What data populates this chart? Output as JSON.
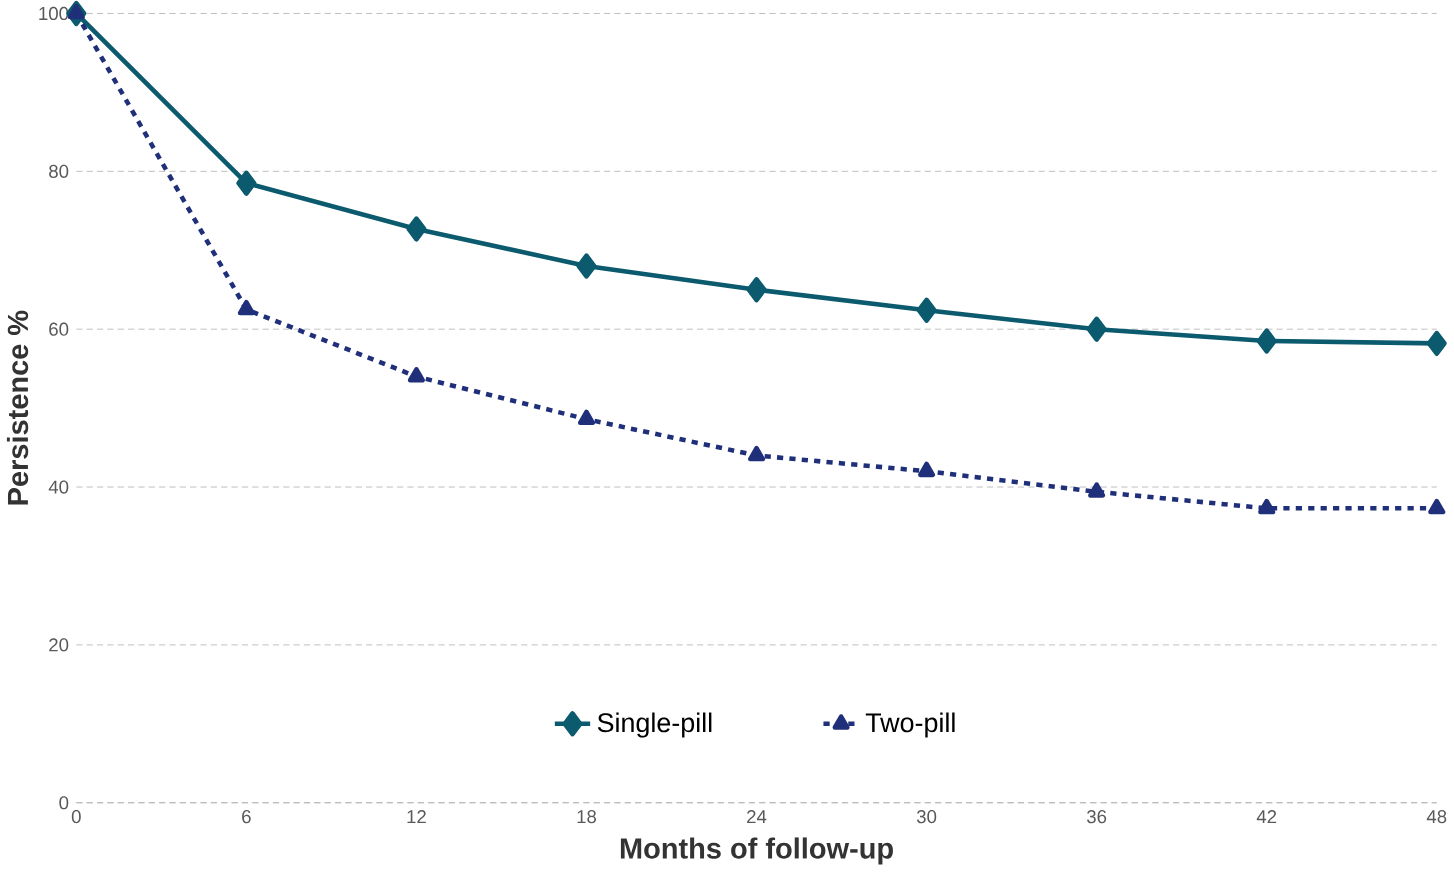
{
  "chart_data": {
    "type": "line",
    "xlabel": "Months of follow-up",
    "ylabel": "Persistence %",
    "x": [
      0,
      6,
      12,
      18,
      24,
      30,
      36,
      42,
      48
    ],
    "series": [
      {
        "name": "Single-pill",
        "color": "#0b5a6e",
        "marker": "diamond",
        "line_style": "solid",
        "values": [
          100,
          78.5,
          72.7,
          68,
          65,
          62.4,
          60,
          58.5,
          58.2
        ]
      },
      {
        "name": "Two-pill",
        "color": "#1f2f7a",
        "marker": "triangle",
        "line_style": "dashed",
        "values": [
          100,
          62.5,
          54,
          48.6,
          44,
          42,
          39.4,
          37.3,
          37.3
        ]
      }
    ],
    "xlim": [
      0,
      48
    ],
    "xticks": [
      0,
      6,
      12,
      18,
      24,
      30,
      36,
      42,
      48
    ],
    "ylim": [
      0,
      100
    ],
    "yticks": [
      0,
      20,
      40,
      60,
      80,
      100
    ],
    "grid": "y",
    "legend": "bottom"
  }
}
